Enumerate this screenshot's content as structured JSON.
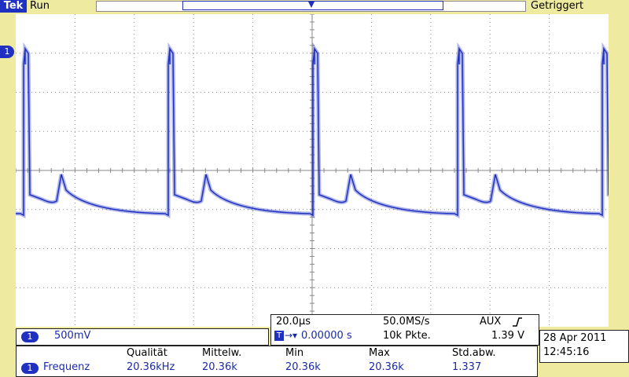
{
  "status": {
    "brand": "Tek",
    "run_state": "Run",
    "trigger_state": "Getriggert"
  },
  "markers": {
    "channel": "1",
    "trigger": "T"
  },
  "channel": {
    "number": "1",
    "scale": "500mV"
  },
  "timebase": {
    "scale": "20.0µs",
    "sample_rate": "50.0MS/s",
    "trigger_source": "AUX",
    "trigger_icon": "rising-edge-icon",
    "position_icon": "T",
    "position": "0.00000 s",
    "record_length": "10k Pkte.",
    "trigger_level": "1.39 V"
  },
  "measurement": {
    "channel": "1",
    "name": "Frequenz",
    "headers": [
      "Qualität",
      "Mittelw.",
      "Min",
      "Max",
      "Std.abw."
    ],
    "values": [
      "20.36kHz",
      "20.36k",
      "20.36k",
      "20.36k",
      "1.337"
    ]
  },
  "datetime": {
    "date": "28 Apr  2011",
    "time": "12:45:16"
  },
  "colors": {
    "trace": "#2030c0",
    "background": "#eeeba0",
    "graticule": "#8a8a8a"
  }
}
